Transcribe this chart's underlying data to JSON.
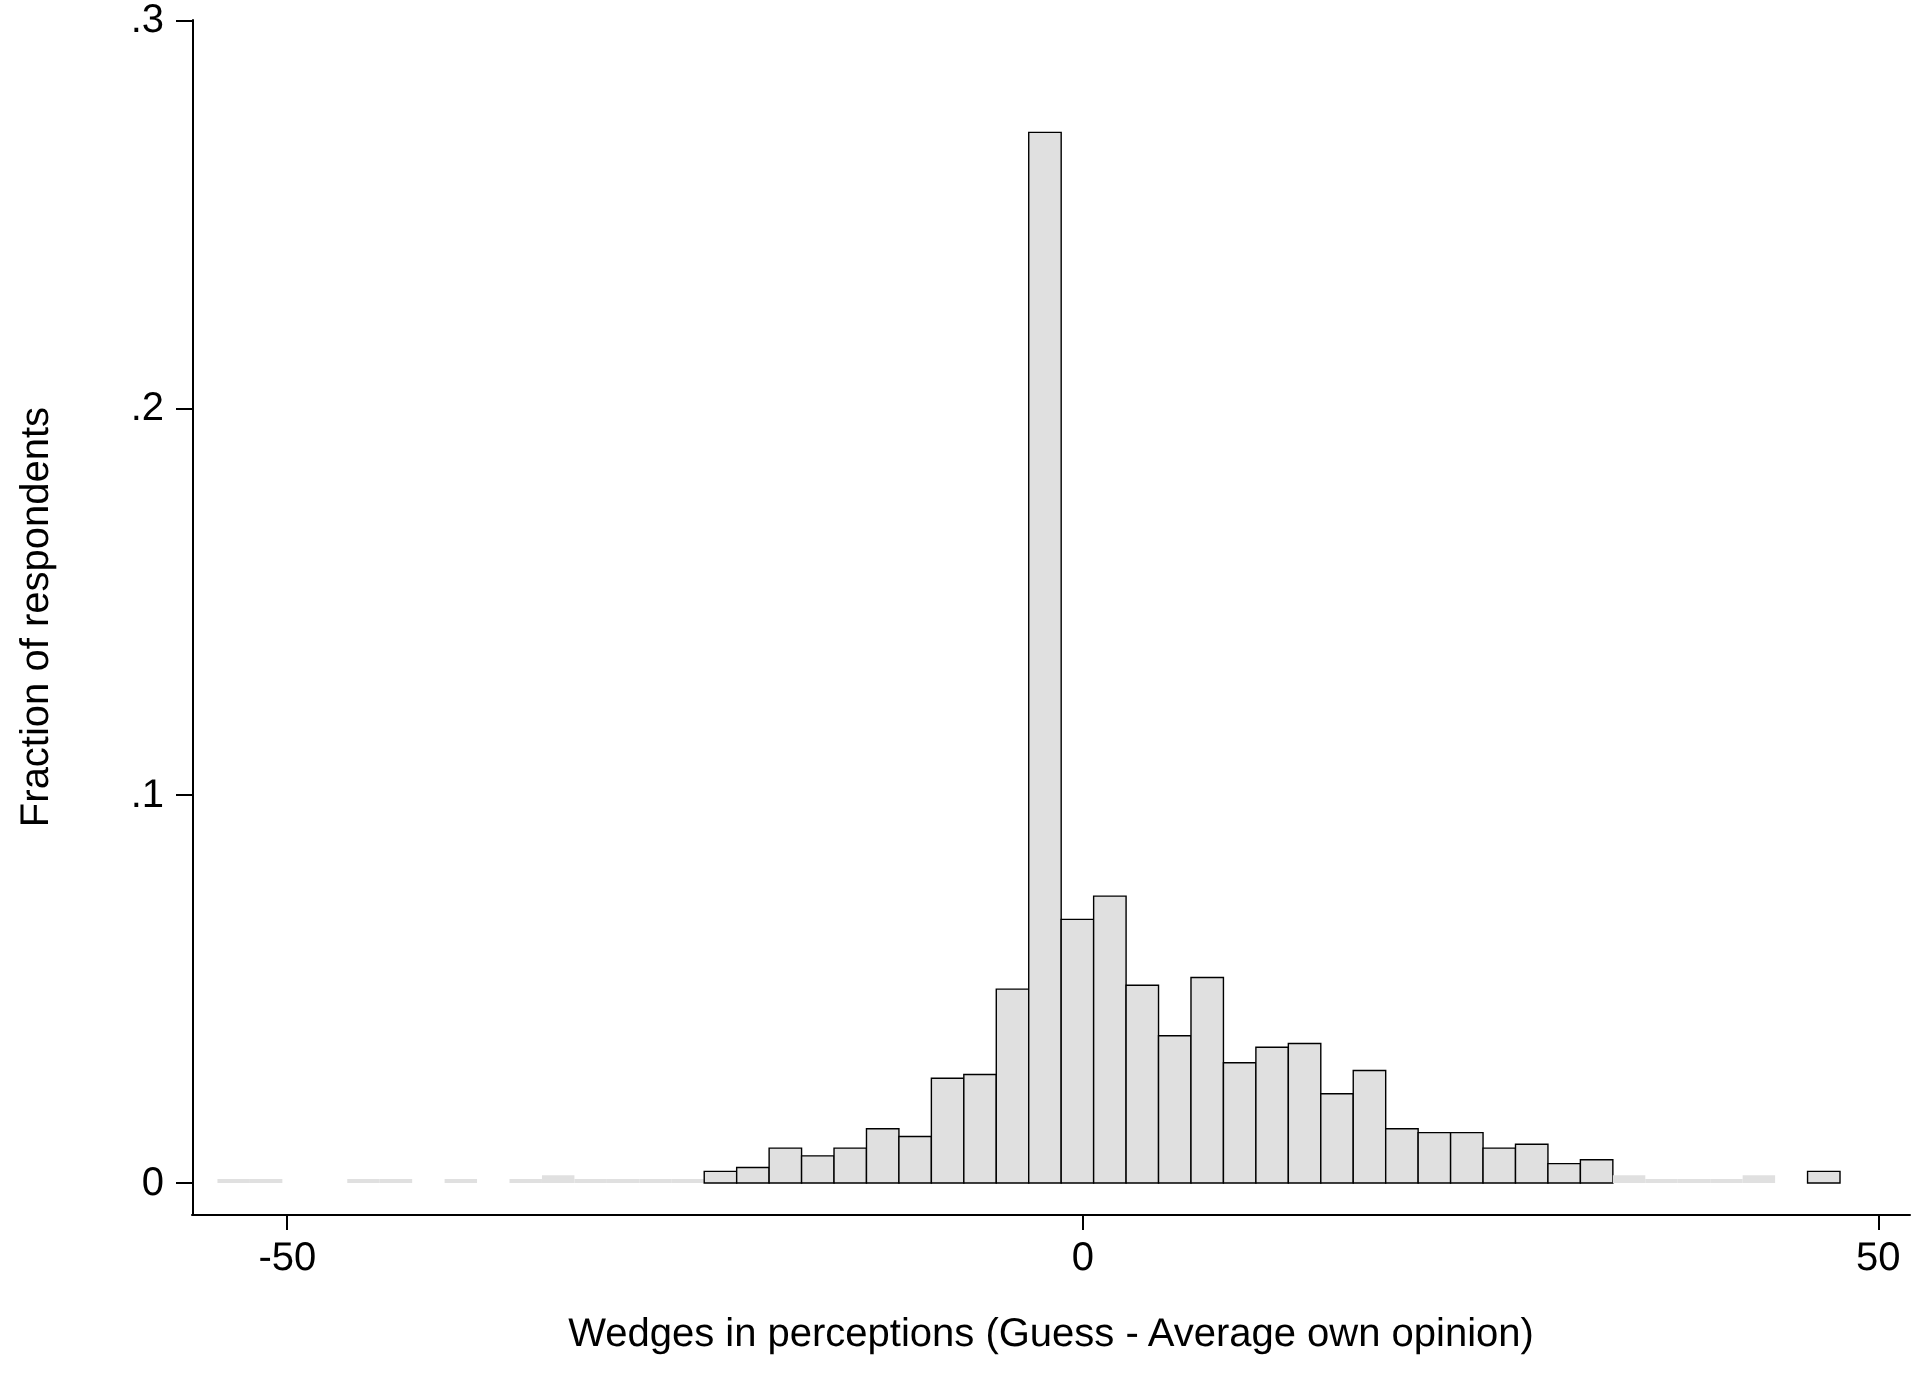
{
  "chart_data": {
    "type": "histogram",
    "xlabel": "Wedges in perceptions (Guess - Average own opinion)",
    "ylabel": "Fraction of respondents",
    "bins": [
      -54.4,
      -52.36,
      -50.32,
      -48.28,
      -46.24,
      -44.2,
      -42.16,
      -40.12,
      -38.08,
      -36.04,
      -34,
      -31.96,
      -29.92,
      -27.88,
      -25.84,
      -23.8,
      -21.76,
      -19.72,
      -17.68,
      -15.64,
      -13.6,
      -11.56,
      -9.52,
      -7.48,
      -5.44,
      -3.4,
      -1.36,
      0.68,
      2.72,
      4.76,
      6.8,
      8.84,
      10.88,
      12.92,
      14.96,
      17,
      19.04,
      21.08,
      23.12,
      25.16,
      27.2,
      29.24,
      31.28,
      33.32,
      35.36,
      37.4,
      39.44,
      41.48,
      43.52,
      45.56,
      47.6
    ],
    "values": [
      0.001,
      0.001,
      0,
      0,
      0.001,
      0.001,
      0,
      0.001,
      0,
      0.001,
      0.002,
      0.001,
      0.001,
      0.001,
      0.001,
      0.003,
      0.004,
      0.009,
      0.007,
      0.009,
      0.014,
      0.012,
      0.027,
      0.028,
      0.05,
      0.271,
      0.068,
      0.074,
      0.051,
      0.038,
      0.053,
      0.031,
      0.035,
      0.036,
      0.023,
      0.029,
      0.014,
      0.013,
      0.013,
      0.009,
      0.01,
      0.005,
      0.006,
      0.002,
      0.001,
      0.001,
      0.001,
      0.002,
      0,
      0.003
    ],
    "color": "#e0e0e0",
    "xlim": [
      -56,
      52
    ],
    "xticks": [
      -50,
      0,
      50
    ],
    "ylim": [
      -0.008,
      0.3
    ],
    "yticks": [
      {
        "value": 0,
        "label": "0"
      },
      {
        "value": 0.1,
        "label": ".1"
      },
      {
        "value": 0.2,
        "label": ".2"
      },
      {
        "value": 0.3,
        "label": ".3"
      }
    ],
    "grid": false
  }
}
